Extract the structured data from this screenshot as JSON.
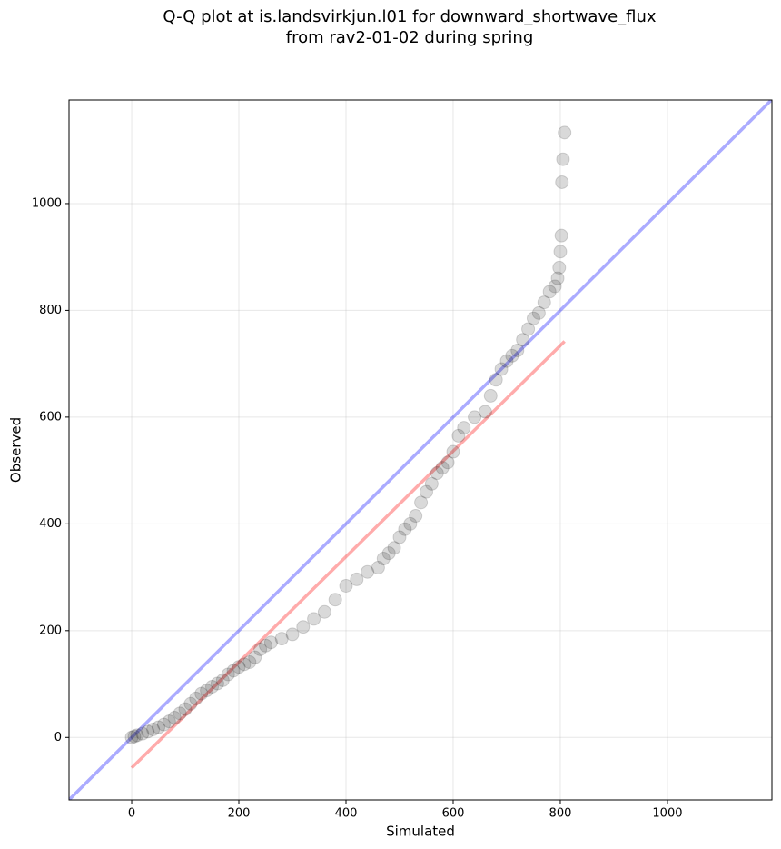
{
  "chart_data": {
    "type": "scatter",
    "title": [
      "Q-Q plot at is.landsvirkjun.l01 for downward_shortwave_flux",
      "from rav2-01-02 during spring"
    ],
    "xlabel": "Simulated",
    "ylabel": "Observed",
    "xlim": [
      -117,
      1195
    ],
    "ylim": [
      -117,
      1194
    ],
    "xticks": [
      0,
      200,
      400,
      600,
      800,
      1000
    ],
    "yticks": [
      0,
      200,
      400,
      600,
      800,
      1000
    ],
    "grid": true,
    "series": [
      {
        "color": "#000000",
        "x": [
          0,
          5,
          10,
          20,
          30,
          40,
          50,
          60,
          70,
          80,
          90,
          100,
          110,
          120,
          130,
          140,
          150,
          160,
          170,
          180,
          190,
          200,
          210,
          220,
          230,
          240,
          250,
          260,
          280,
          300,
          320,
          340,
          360,
          380,
          400,
          420,
          440,
          460,
          470,
          480,
          490,
          500,
          510,
          520,
          530,
          540,
          550,
          560,
          570,
          580,
          590,
          600,
          610,
          620,
          640,
          660,
          670,
          680,
          690,
          700,
          710,
          720,
          730,
          740,
          750,
          760,
          770,
          780,
          790,
          795,
          798,
          800,
          802,
          803,
          805,
          808
        ],
        "y": [
          0,
          2,
          4,
          7,
          11,
          15,
          19,
          24,
          30,
          37,
          45,
          53,
          63,
          73,
          82,
          88,
          95,
          101,
          107,
          118,
          125,
          132,
          137,
          141,
          150,
          165,
          172,
          178,
          185,
          193,
          207,
          222,
          235,
          258,
          284,
          296,
          310,
          318,
          335,
          345,
          355,
          375,
          390,
          400,
          415,
          440,
          460,
          475,
          495,
          505,
          515,
          535,
          565,
          580,
          600,
          610,
          640,
          670,
          690,
          705,
          715,
          725,
          745,
          765,
          785,
          795,
          815,
          835,
          845,
          860,
          880,
          910,
          940,
          1040,
          1083,
          1133
        ]
      }
    ],
    "lines": [
      {
        "color": "#0000ff",
        "x": [
          -117,
          1195
        ],
        "y": [
          -117,
          1195
        ]
      },
      {
        "color": "#ff0000",
        "x": [
          0,
          808
        ],
        "y": [
          -57,
          742
        ]
      }
    ]
  }
}
